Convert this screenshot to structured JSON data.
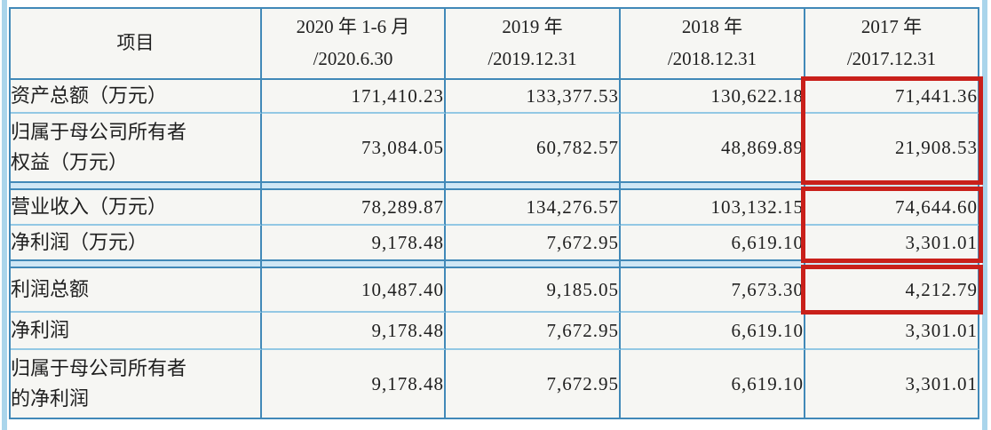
{
  "table": {
    "corner_header": "项目",
    "period_columns": [
      "2020 年 1-6 月\n/2020.6.30",
      "2019 年\n/2019.12.31",
      "2018 年\n/2018.12.31",
      "2017 年\n/2017.12.31"
    ],
    "rows": [
      {
        "label": "资产总额（万元）",
        "values": [
          "171,410.23",
          "133,377.53",
          "130,622.18",
          "71,441.36"
        ]
      },
      {
        "label": "归属于母公司所有者\n权益（万元）",
        "values": [
          "73,084.05",
          "60,782.57",
          "48,869.89",
          "21,908.53"
        ]
      },
      {
        "label": "营业收入（万元）",
        "values": [
          "78,289.87",
          "134,276.57",
          "103,132.15",
          "74,644.60"
        ]
      },
      {
        "label": "净利润（万元）",
        "values": [
          "9,178.48",
          "7,672.95",
          "6,619.10",
          "3,301.01"
        ]
      },
      {
        "label": "利润总额",
        "values": [
          "10,487.40",
          "9,185.05",
          "7,673.30",
          "4,212.79"
        ]
      },
      {
        "label": "净利润",
        "values": [
          "9,178.48",
          "7,672.95",
          "6,619.10",
          "3,301.01"
        ]
      },
      {
        "label": "归属于母公司所有者\n的净利润",
        "values": [
          "9,178.48",
          "7,672.95",
          "6,619.10",
          "3,301.01"
        ]
      }
    ],
    "highlights": {
      "color": "#c9201a",
      "column": "2017 年/2017.12.31",
      "boxed_value_groups": [
        [
          "71,441.36",
          "21,908.53"
        ],
        [
          "74,644.60",
          "3,301.01"
        ],
        [
          "4,212.79"
        ]
      ]
    }
  },
  "colors": {
    "border_dark": "#4189b8",
    "border_light": "#93c8e4",
    "divider_band_fill": "#cfe7f5",
    "cell_background": "#f6f6f3",
    "page_edge_strip": "#aad5eb",
    "highlight_red": "#c9201a"
  }
}
